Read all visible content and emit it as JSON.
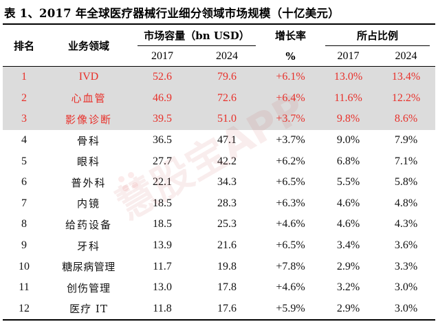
{
  "title": "表 1、2017 年全球医疗器械行业细分领域市场规模（十亿美元）",
  "header": {
    "rank": "排名",
    "area": "业务领域",
    "market_size": "市场容量（bn USD）",
    "growth": "增长率",
    "growth_unit": "%",
    "share": "所占比例",
    "year_2017": "2017",
    "year_2024": "2024"
  },
  "highlight_color": "#e8302a",
  "rows": [
    {
      "rank": "1",
      "area": "IVD",
      "v2017": "52.6",
      "v2024": "79.6",
      "growth": "+6.1%",
      "s2017": "13.0%",
      "s2024": "13.4%"
    },
    {
      "rank": "2",
      "area": "心血管",
      "v2017": "46.9",
      "v2024": "72.6",
      "growth": "+6.4%",
      "s2017": "11.6%",
      "s2024": "12.2%"
    },
    {
      "rank": "3",
      "area": "影像诊断",
      "v2017": "39.5",
      "v2024": "51.0",
      "growth": "+3.7%",
      "s2017": "9.8%",
      "s2024": "8.6%"
    },
    {
      "rank": "4",
      "area": "骨科",
      "v2017": "36.5",
      "v2024": "47.1",
      "growth": "+3.7%",
      "s2017": "9.0%",
      "s2024": "7.9%"
    },
    {
      "rank": "5",
      "area": "眼科",
      "v2017": "27.7",
      "v2024": "42.2",
      "growth": "+6.2%",
      "s2017": "6.8%",
      "s2024": "7.1%"
    },
    {
      "rank": "6",
      "area": "普外科",
      "v2017": "22.1",
      "v2024": "34.3",
      "growth": "+6.5%",
      "s2017": "5.5%",
      "s2024": "5.8%"
    },
    {
      "rank": "7",
      "area": "内镜",
      "v2017": "18.5",
      "v2024": "28.3",
      "growth": "+6.3%",
      "s2017": "4.6%",
      "s2024": "4.8%"
    },
    {
      "rank": "8",
      "area": "给药设备",
      "v2017": "18.5",
      "v2024": "25.3",
      "growth": "+4.6%",
      "s2017": "4.6%",
      "s2024": "4.3%"
    },
    {
      "rank": "9",
      "area": "牙科",
      "v2017": "13.9",
      "v2024": "21.6",
      "growth": "+6.5%",
      "s2017": "3.4%",
      "s2024": "3.6%"
    },
    {
      "rank": "10",
      "area": "糖尿病管理",
      "v2017": "11.7",
      "v2024": "19.8",
      "growth": "+7.8%",
      "s2017": "2.9%",
      "s2024": "3.3%"
    },
    {
      "rank": "11",
      "area": "创伤管理",
      "v2017": "13.0",
      "v2024": "17.8",
      "growth": "+4.6%",
      "s2017": "3.2%",
      "s2024": "3.0%"
    },
    {
      "rank": "12",
      "area": "医疗 IT",
      "v2017": "11.8",
      "v2024": "17.6",
      "growth": "+5.9%",
      "s2017": "2.9%",
      "s2024": "3.0%"
    }
  ],
  "watermark": "慧股宝APP"
}
